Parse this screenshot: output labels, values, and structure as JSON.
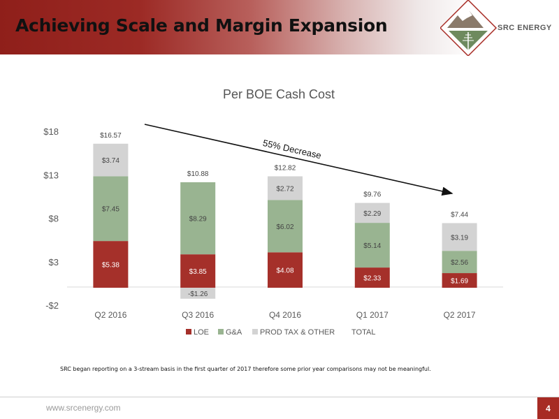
{
  "header": {
    "title": "Achieving Scale and Margin Expansion",
    "logo_text": "SRC ENERGY"
  },
  "colors": {
    "loe": "#a5302a",
    "ga": "#99b491",
    "prod_tax_other": "#d3d3d3",
    "header_red": "#8f1f1a"
  },
  "chart_data": {
    "type": "bar",
    "stacked": true,
    "title": "Per BOE Cash Cost",
    "categories": [
      "Q2 2016",
      "Q3 2016",
      "Q4 2016",
      "Q1 2017",
      "Q2 2017"
    ],
    "series": [
      {
        "name": "LOE",
        "values": [
          5.38,
          3.85,
          4.08,
          2.33,
          1.69
        ],
        "labels": [
          "$5.38",
          "$3.85",
          "$4.08",
          "$2.33",
          "$1.69"
        ]
      },
      {
        "name": "G&A",
        "values": [
          7.45,
          8.29,
          6.02,
          5.14,
          2.56
        ],
        "labels": [
          "$7.45",
          "$8.29",
          "$6.02",
          "$5.14",
          "$2.56"
        ]
      },
      {
        "name": "PROD TAX & OTHER",
        "values": [
          3.74,
          -1.26,
          2.72,
          2.29,
          3.19
        ],
        "labels": [
          "$3.74",
          "-$1.26",
          "$2.72",
          "$2.29",
          "$3.19"
        ]
      }
    ],
    "totals": {
      "name": "TOTAL",
      "values": [
        16.57,
        10.88,
        12.82,
        9.76,
        7.44
      ],
      "labels": [
        "$16.57",
        "$10.88",
        "$12.82",
        "$9.76",
        "$7.44"
      ]
    },
    "y_ticks": [
      -2,
      3,
      8,
      13,
      18
    ],
    "y_tick_labels": [
      "-$2",
      "$3",
      "$8",
      "$13",
      "$18"
    ],
    "ylim": [
      -2,
      18
    ],
    "annotation": "55% Decrease",
    "legend_position": "bottom",
    "grid": false
  },
  "footnote": "SRC began reporting on a 3-stream basis in the first quarter of 2017 therefore some prior year comparisons may not be meaningful.",
  "footer": {
    "url": "www.srcenergy.com",
    "page_number": "4"
  }
}
